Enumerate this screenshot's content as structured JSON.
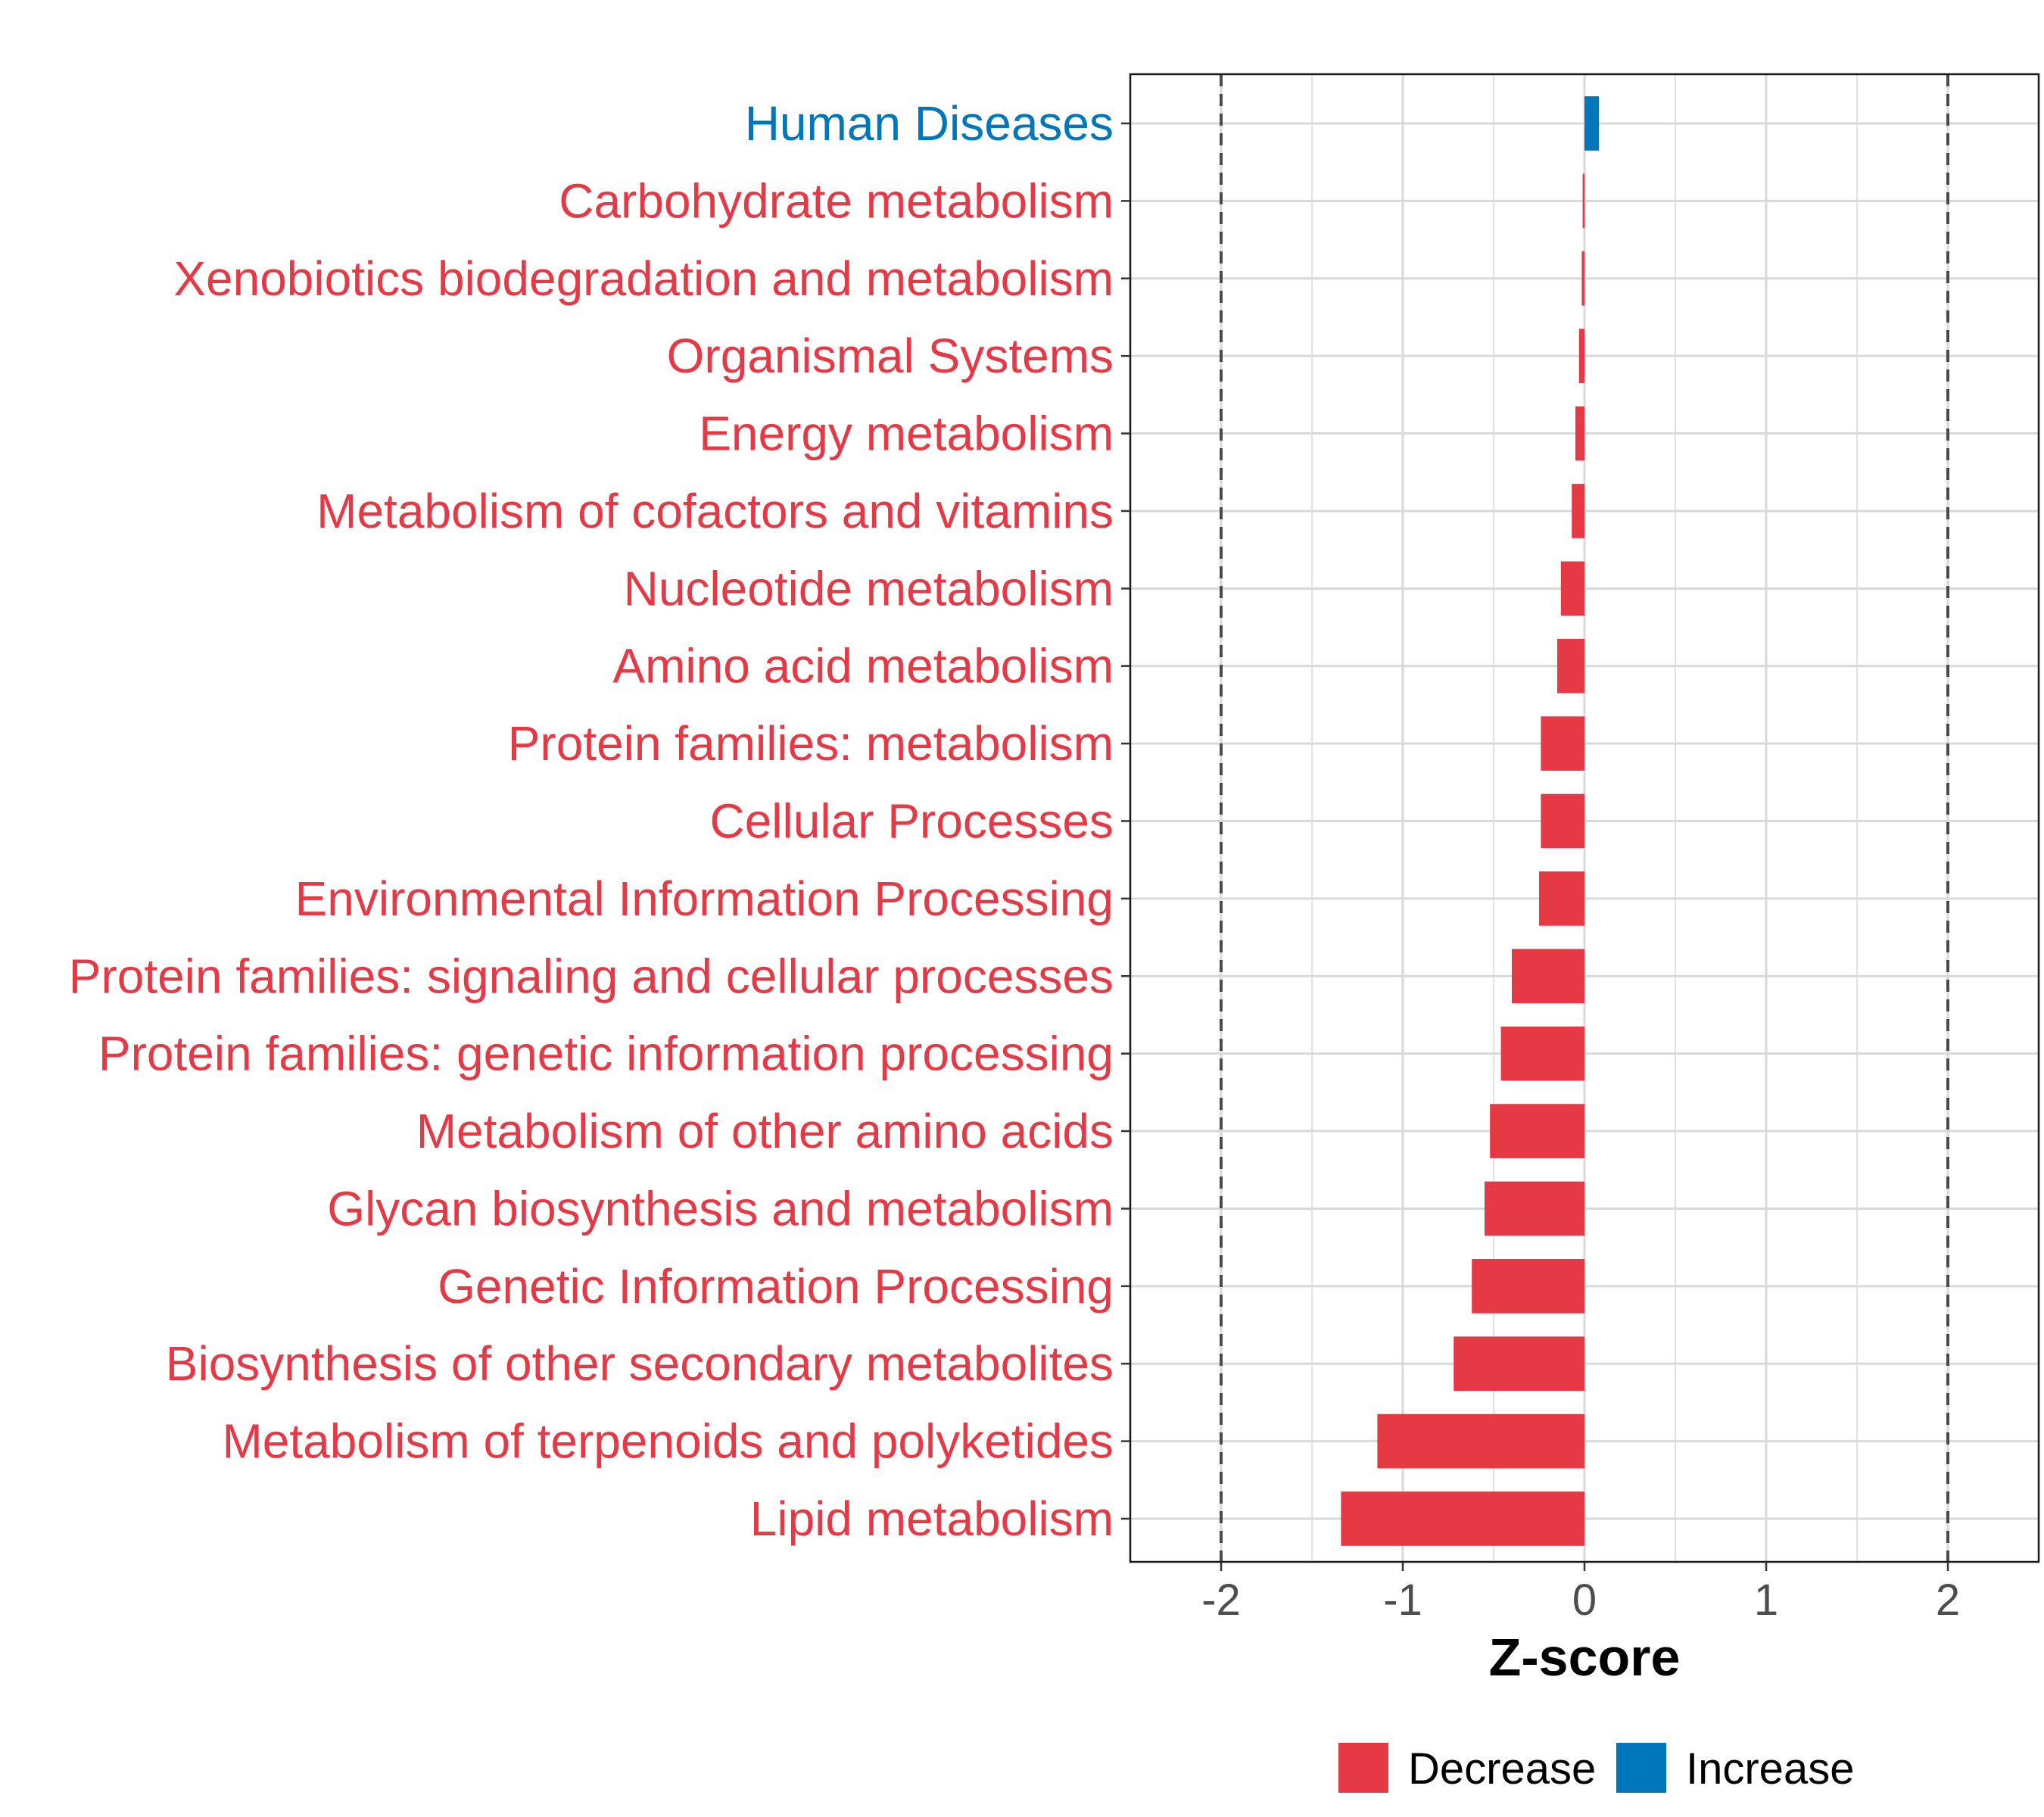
{
  "chart_data": {
    "type": "bar",
    "orientation": "horizontal",
    "xlabel": "Z-score",
    "ylabel": "",
    "xlim": [
      -2.5,
      2.5
    ],
    "xticks": [
      -2,
      -1,
      0,
      1,
      2
    ],
    "xtick_labels": [
      "-2",
      "-1",
      "0",
      "1",
      "2"
    ],
    "reference_lines": [
      -2,
      2
    ],
    "grid": true,
    "legend_position": "bottom",
    "categories": [
      "Human Diseases",
      "Carbohydrate metabolism",
      "Xenobiotics biodegradation and metabolism",
      "Organismal Systems",
      "Energy metabolism",
      "Metabolism of cofactors and vitamins",
      "Nucleotide metabolism",
      "Amino acid metabolism",
      "Protein families: metabolism",
      "Cellular Processes",
      "Environmental Information Processing",
      "Protein families: signaling and cellular processes",
      "Protein families: genetic information processing",
      "Metabolism of other amino acids",
      "Glycan biosynthesis and metabolism",
      "Genetic Information Processing",
      "Biosynthesis of other secondary metabolites",
      "Metabolism of terpenoids and polyketides",
      "Lipid metabolism"
    ],
    "values": [
      0.08,
      -0.01,
      -0.015,
      -0.03,
      -0.05,
      -0.07,
      -0.13,
      -0.15,
      -0.24,
      -0.24,
      -0.25,
      -0.4,
      -0.46,
      -0.52,
      -0.55,
      -0.62,
      -0.72,
      -1.14,
      -1.34
    ],
    "groups": [
      "Increase",
      "Decrease",
      "Decrease",
      "Decrease",
      "Decrease",
      "Decrease",
      "Decrease",
      "Decrease",
      "Decrease",
      "Decrease",
      "Decrease",
      "Decrease",
      "Decrease",
      "Decrease",
      "Decrease",
      "Decrease",
      "Decrease",
      "Decrease",
      "Decrease"
    ],
    "legend": [
      {
        "label": "Decrease",
        "color": "#E63946"
      },
      {
        "label": "Increase",
        "color": "#0077BB"
      }
    ]
  }
}
